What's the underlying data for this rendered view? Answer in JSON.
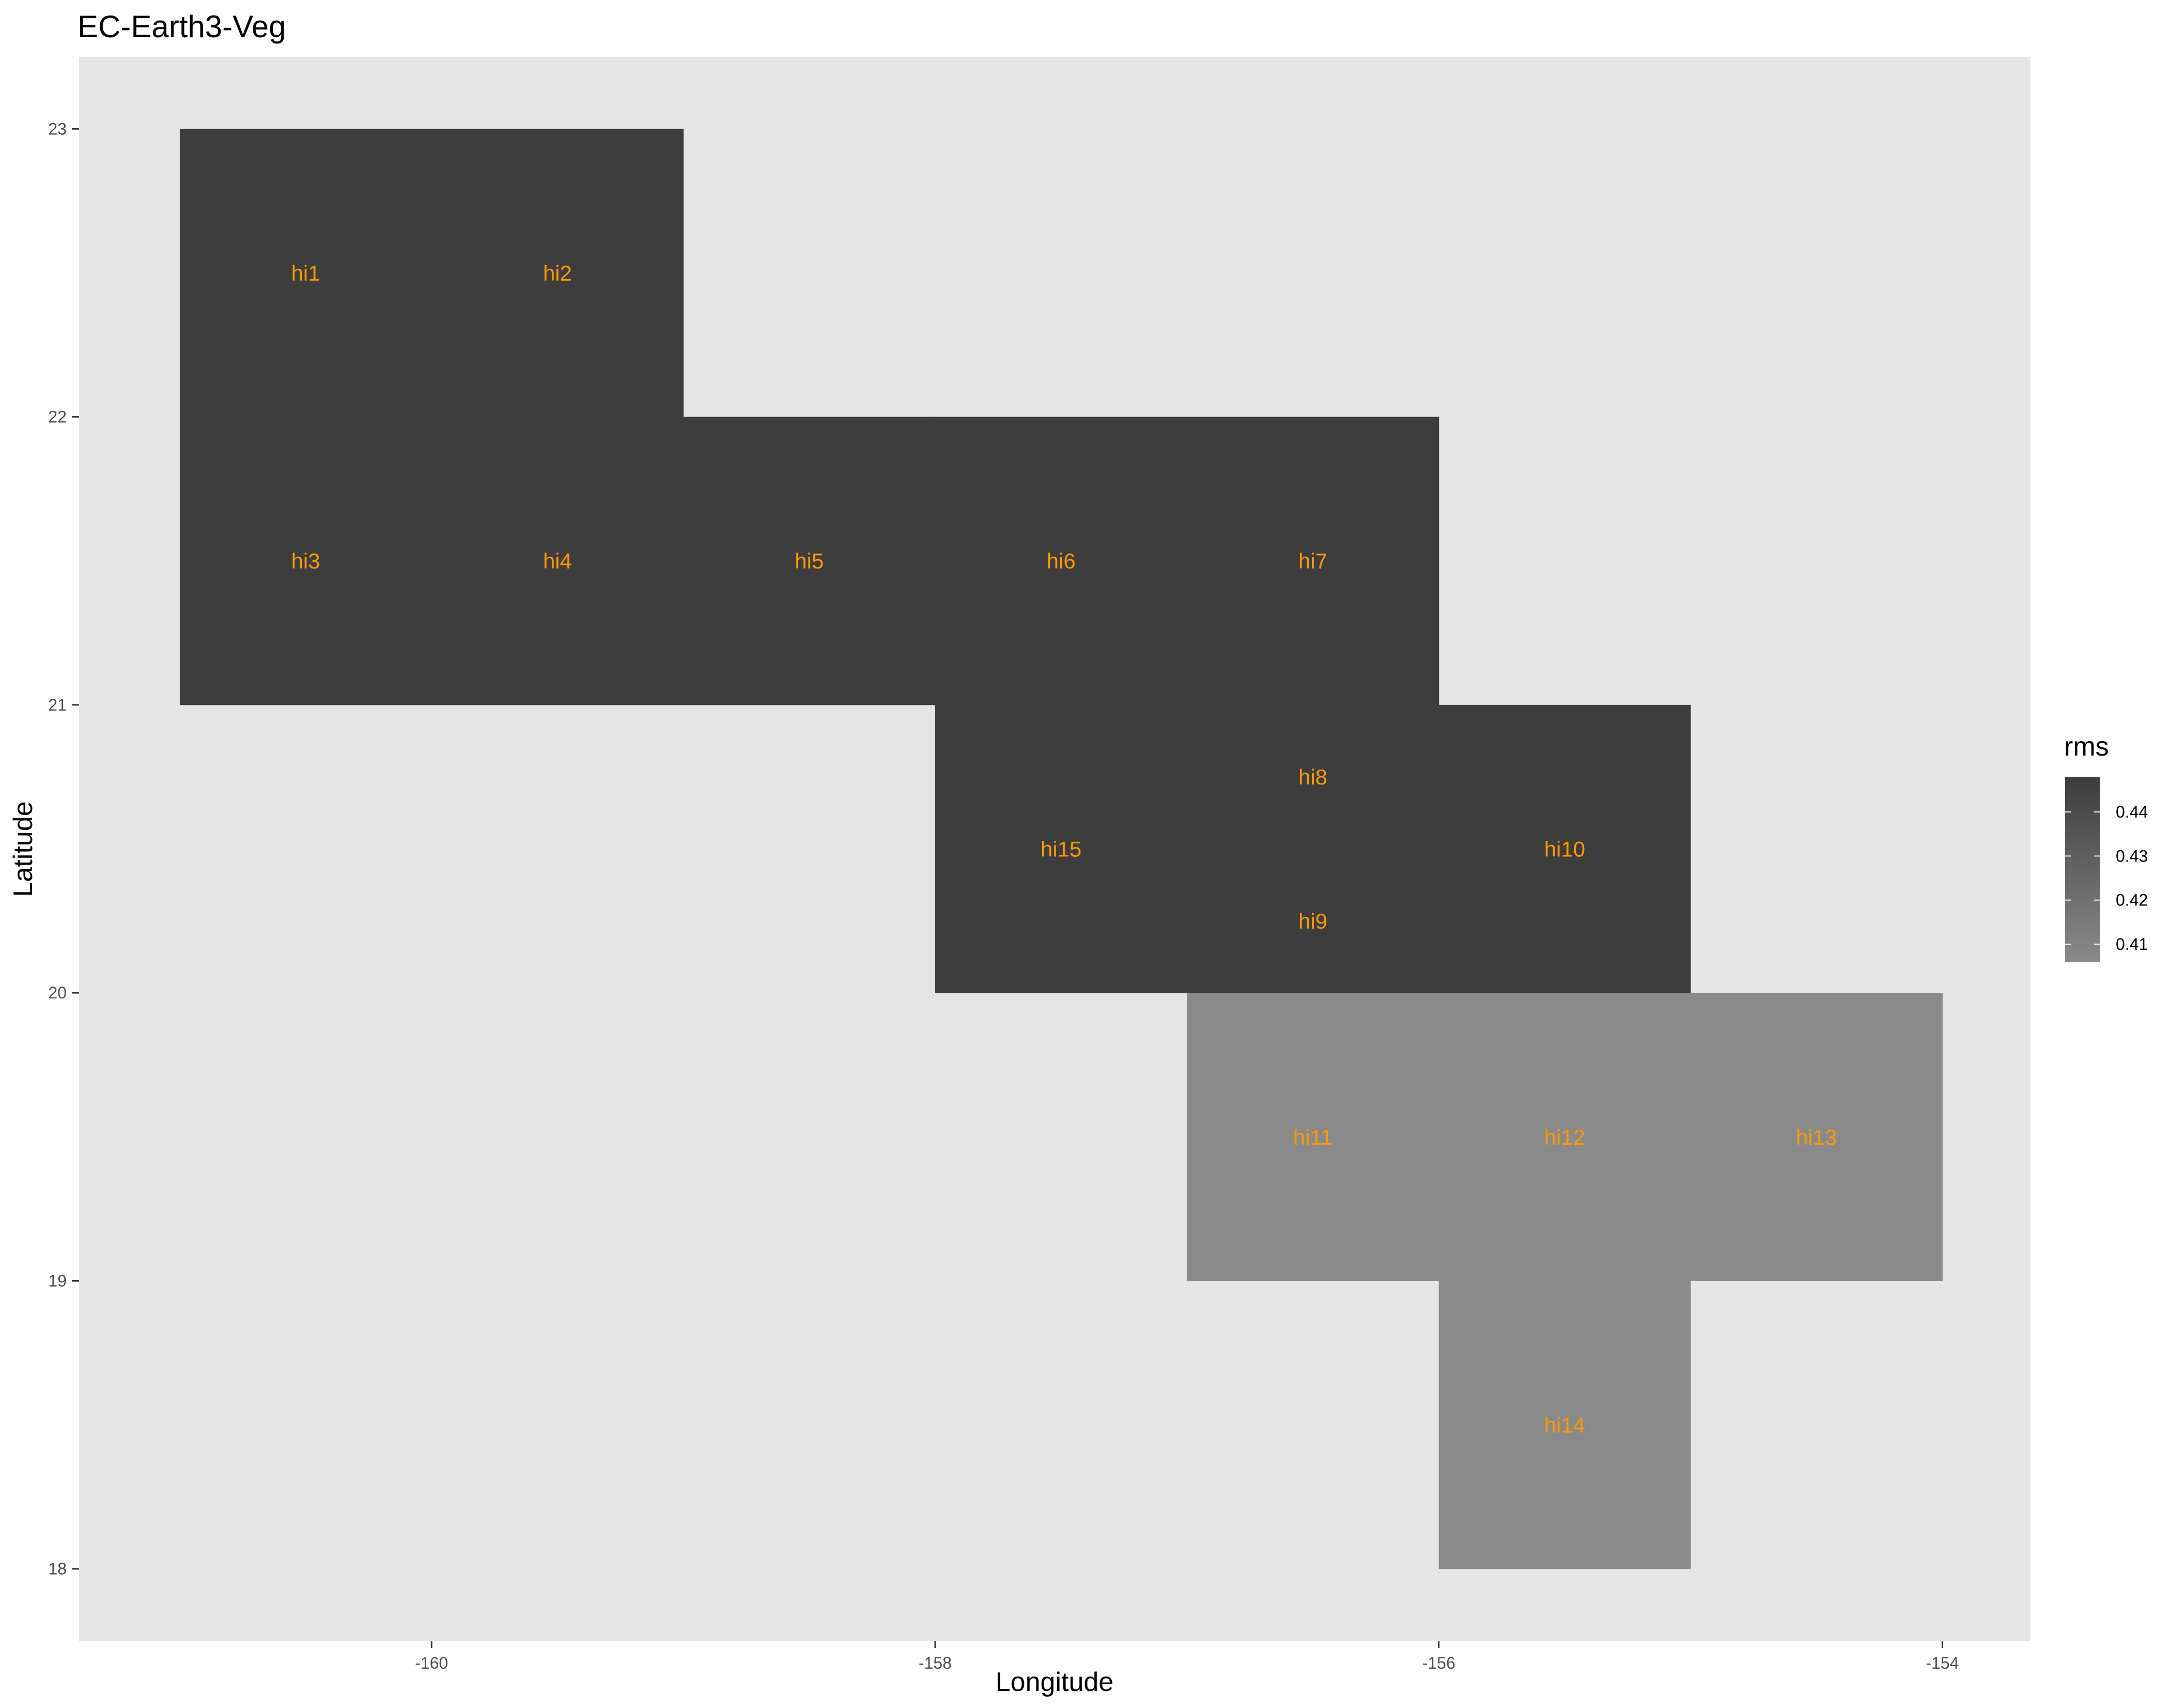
{
  "chart_data": {
    "type": "heatmap",
    "title": "EC-Earth3-Veg",
    "xlabel": "Longitude",
    "ylabel": "Latitude",
    "xlim": [
      -161.4,
      -153.65
    ],
    "ylim": [
      17.75,
      23.25
    ],
    "x_ticks": [
      -160,
      -158,
      -156,
      -154
    ],
    "y_ticks": [
      18,
      19,
      20,
      21,
      22,
      23
    ],
    "grid": false,
    "label_color": "#ff9900",
    "panel_background": "#e5e5e5",
    "legend": {
      "title": "rms",
      "placement": "right",
      "ticks": [
        0.41,
        0.42,
        0.43,
        0.44
      ],
      "range": [
        0.406,
        0.448
      ],
      "low_color": "#8a8a8a",
      "high_color": "#3d3d3d"
    },
    "tiles": [
      {
        "id": "hi1",
        "lon": [
          -161,
          -160
        ],
        "lat": [
          22,
          23
        ],
        "label_lon": -160.5,
        "label_lat": 22.5,
        "rms": 0.448
      },
      {
        "id": "hi2",
        "lon": [
          -160,
          -159
        ],
        "lat": [
          22,
          23
        ],
        "label_lon": -159.5,
        "label_lat": 22.5,
        "rms": 0.448
      },
      {
        "id": "hi3",
        "lon": [
          -161,
          -160
        ],
        "lat": [
          21,
          22
        ],
        "label_lon": -160.5,
        "label_lat": 21.5,
        "rms": 0.448
      },
      {
        "id": "hi4",
        "lon": [
          -160,
          -159
        ],
        "lat": [
          21,
          22
        ],
        "label_lon": -159.5,
        "label_lat": 21.5,
        "rms": 0.448
      },
      {
        "id": "hi5",
        "lon": [
          -159,
          -158
        ],
        "lat": [
          21,
          22
        ],
        "label_lon": -158.5,
        "label_lat": 21.5,
        "rms": 0.448
      },
      {
        "id": "hi6",
        "lon": [
          -158,
          -157
        ],
        "lat": [
          21,
          22
        ],
        "label_lon": -157.5,
        "label_lat": 21.5,
        "rms": 0.448
      },
      {
        "id": "hi7",
        "lon": [
          -157,
          -156
        ],
        "lat": [
          21,
          22
        ],
        "label_lon": -156.5,
        "label_lat": 21.5,
        "rms": 0.448
      },
      {
        "id": "hi8",
        "lon": [
          -157,
          -156
        ],
        "lat": [
          20,
          21
        ],
        "label_lon": -156.5,
        "label_lat": 20.75,
        "rms": 0.448
      },
      {
        "id": "hi9",
        "lon": [
          -157,
          -156
        ],
        "lat": [
          20,
          21
        ],
        "label_lon": -156.5,
        "label_lat": 20.25,
        "rms": 0.448
      },
      {
        "id": "hi10",
        "lon": [
          -156,
          -155
        ],
        "lat": [
          20,
          21
        ],
        "label_lon": -155.5,
        "label_lat": 20.5,
        "rms": 0.448
      },
      {
        "id": "hi15",
        "lon": [
          -158,
          -157
        ],
        "lat": [
          20,
          21
        ],
        "label_lon": -157.5,
        "label_lat": 20.5,
        "rms": 0.448
      },
      {
        "id": "hi11",
        "lon": [
          -157,
          -156
        ],
        "lat": [
          19,
          20
        ],
        "label_lon": -156.5,
        "label_lat": 19.5,
        "rms": 0.406
      },
      {
        "id": "hi12",
        "lon": [
          -156,
          -155
        ],
        "lat": [
          19,
          20
        ],
        "label_lon": -155.5,
        "label_lat": 19.5,
        "rms": 0.406
      },
      {
        "id": "hi13",
        "lon": [
          -155,
          -154
        ],
        "lat": [
          19,
          20
        ],
        "label_lon": -154.5,
        "label_lat": 19.5,
        "rms": 0.406
      },
      {
        "id": "hi14",
        "lon": [
          -156,
          -155
        ],
        "lat": [
          18,
          19
        ],
        "label_lon": -155.5,
        "label_lat": 18.5,
        "rms": 0.406
      }
    ]
  }
}
